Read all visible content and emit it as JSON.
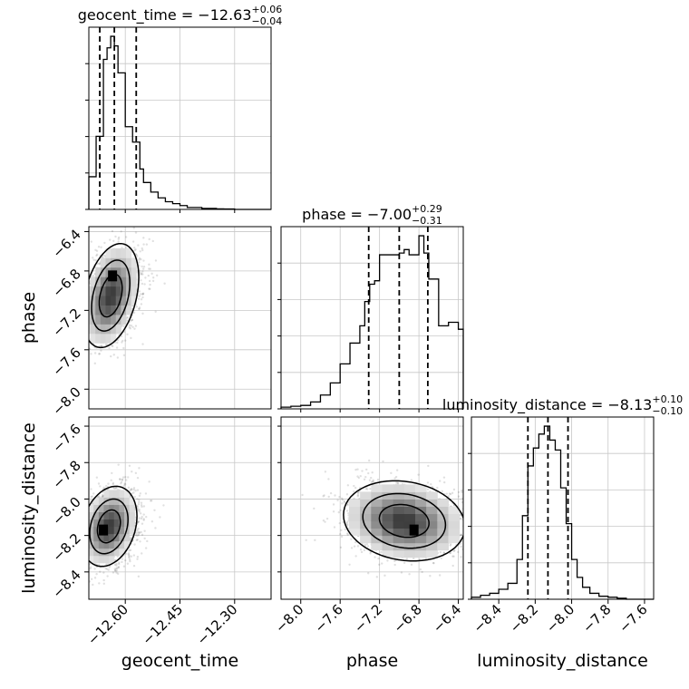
{
  "chart_data": {
    "type": "corner",
    "grid": true,
    "quantile_line_style": "dashed",
    "parameters": [
      {
        "name": "geocent_time",
        "axis_label": "geocent_time",
        "title": {
          "text": "geocent_time = −12.63",
          "sup": "+0.06",
          "sub": "−0.04"
        },
        "range": [
          -12.7,
          -12.2
        ],
        "ticks": [
          -12.6,
          -12.45,
          -12.3
        ],
        "tick_labels": [
          "−12.60",
          "−12.45",
          "−12.30"
        ],
        "quantiles": [
          -12.67,
          -12.63,
          -12.57
        ],
        "histogram": {
          "bin_edges": [
            -12.7,
            -12.68,
            -12.66,
            -12.65,
            -12.64,
            -12.63,
            -12.62,
            -12.6,
            -12.58,
            -12.56,
            -12.55,
            -12.53,
            -12.51,
            -12.49,
            -12.47,
            -12.45,
            -12.43,
            -12.41,
            -12.39,
            -12.37,
            -12.35,
            -12.33,
            -12.3,
            -12.2
          ],
          "counts": [
            0.17,
            0.38,
            0.78,
            0.84,
            0.9,
            0.85,
            0.71,
            0.43,
            0.35,
            0.21,
            0.14,
            0.09,
            0.06,
            0.04,
            0.03,
            0.02,
            0.01,
            0.01,
            0.005,
            0.005,
            0.003,
            0.002,
            0
          ]
        }
      },
      {
        "name": "phase",
        "axis_label": "phase",
        "title": {
          "text": "phase = −7.00",
          "sup": "+0.29",
          "sub": "−0.31"
        },
        "range": [
          -8.2,
          -6.35
        ],
        "ticks": [
          -8.0,
          -7.6,
          -7.2,
          -6.8,
          -6.4
        ],
        "tick_labels": [
          "−8.0",
          "−7.6",
          "−7.2",
          "−6.8",
          "−6.4"
        ],
        "quantiles": [
          -7.31,
          -7.0,
          -6.71
        ],
        "histogram": {
          "bin_edges": [
            -8.2,
            -8.1,
            -8.0,
            -7.9,
            -7.8,
            -7.7,
            -7.6,
            -7.5,
            -7.4,
            -7.35,
            -7.3,
            -7.25,
            -7.2,
            -7.1,
            -7.0,
            -6.95,
            -6.9,
            -6.8,
            -6.75,
            -6.7,
            -6.6,
            -6.5,
            -6.4,
            -6.35
          ],
          "counts": [
            0.01,
            0.015,
            0.02,
            0.04,
            0.08,
            0.15,
            0.26,
            0.38,
            0.48,
            0.62,
            0.72,
            0.74,
            0.89,
            0.89,
            0.9,
            0.92,
            0.89,
            1.0,
            0.9,
            0.75,
            0.48,
            0.5,
            0.46
          ]
        }
      },
      {
        "name": "luminosity_distance",
        "axis_label": "luminosity_distance",
        "title": {
          "text": "luminosity_distance = −8.13",
          "sup": "+0.10",
          "sub": "−0.10"
        },
        "range": [
          -8.55,
          -7.55
        ],
        "ticks": [
          -8.4,
          -8.2,
          -8.0,
          -7.8,
          -7.6
        ],
        "tick_labels": [
          "−8.4",
          "−8.2",
          "−8.0",
          "−7.8",
          "−7.6"
        ],
        "quantiles": [
          -8.24,
          -8.13,
          -8.02
        ],
        "histogram": {
          "bin_edges": [
            -8.55,
            -8.5,
            -8.45,
            -8.4,
            -8.35,
            -8.3,
            -8.27,
            -8.24,
            -8.21,
            -8.18,
            -8.15,
            -8.12,
            -8.09,
            -8.06,
            -8.03,
            -8.0,
            -7.97,
            -7.94,
            -7.9,
            -7.85,
            -7.8,
            -7.75,
            -7.7,
            -7.55
          ],
          "counts": [
            0.01,
            0.02,
            0.03,
            0.05,
            0.08,
            0.2,
            0.42,
            0.67,
            0.76,
            0.83,
            0.87,
            0.8,
            0.75,
            0.56,
            0.38,
            0.2,
            0.11,
            0.06,
            0.03,
            0.015,
            0.01,
            0.005,
            0
          ]
        }
      }
    ],
    "panels_2d": [
      {
        "x": "geocent_time",
        "y": "phase",
        "density_center": [
          -12.64,
          -7.05
        ],
        "density_sigma": [
          0.035,
          0.24
        ],
        "correlation": 0.35,
        "peak": [
          -12.635,
          -6.85
        ],
        "sample_count": 1800
      },
      {
        "x": "geocent_time",
        "y": "luminosity_distance",
        "density_center": [
          -12.645,
          -8.15
        ],
        "density_sigma": [
          0.035,
          0.1
        ],
        "correlation": 0.25,
        "peak": [
          -12.66,
          -8.17
        ],
        "sample_count": 1800
      },
      {
        "x": "phase",
        "y": "luminosity_distance",
        "density_center": [
          -6.95,
          -8.12
        ],
        "density_sigma": [
          0.28,
          0.1
        ],
        "correlation": -0.15,
        "peak": [
          -6.85,
          -8.17
        ],
        "sample_count": 1800
      }
    ]
  }
}
